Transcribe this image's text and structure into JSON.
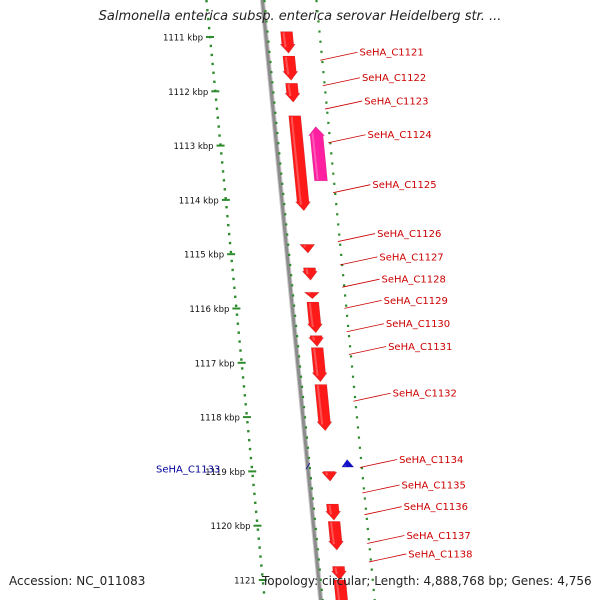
{
  "title": "Salmonella enterica subsp. enterica serovar Heidelberg str. ...",
  "footer": {
    "accession": "Accession: NC_011083",
    "topology": "Topology: circular; Length: 4,888,768 bp; Genes: 4,756"
  },
  "colors": {
    "backbone": "#8c8c8c",
    "gene_forward": "#ff1a1a",
    "gene_highlight": "#ff1fa0",
    "gene_reverse": "#1010cc",
    "scale_dots": "#2e8b2e",
    "label_forward": "#cc0000",
    "label_reverse": "#000099"
  },
  "scale_ticks": [
    {
      "pos": 1111,
      "label": "1111 kbp"
    },
    {
      "pos": 1112,
      "label": "1112 kbp"
    },
    {
      "pos": 1113,
      "label": "1113 kbp"
    },
    {
      "pos": 1114,
      "label": "1114 kbp"
    },
    {
      "pos": 1115,
      "label": "1115 kbp"
    },
    {
      "pos": 1116,
      "label": "1116 kbp"
    },
    {
      "pos": 1117,
      "label": "1117 kbp"
    },
    {
      "pos": 1118,
      "label": "1118 kbp"
    },
    {
      "pos": 1119,
      "label": "1119 kbp"
    },
    {
      "pos": 1120,
      "label": "1120 kbp"
    },
    {
      "pos": 1121,
      "label": "1121"
    }
  ],
  "genes": [
    {
      "label": "SeHA_C1121",
      "strand": "+",
      "start": 1110.9,
      "end": 1111.3,
      "label_pos": 1111.28
    },
    {
      "label": "SeHA_C1122",
      "strand": "+",
      "start": 1111.35,
      "end": 1111.8,
      "label_pos": 1111.75
    },
    {
      "label": "SeHA_C1123",
      "strand": "+",
      "start": 1111.85,
      "end": 1112.2,
      "label_pos": 1112.18
    },
    {
      "label": "SeHA_C1124",
      "strand": "+",
      "start": 1112.65,
      "end": 1113.65,
      "label_pos": 1112.8,
      "highlight": true
    },
    {
      "label": "SeHA_C1125",
      "strand": "+",
      "start": 1112.45,
      "end": 1114.2,
      "label_pos": 1113.72
    },
    {
      "label": "SeHA_C1126",
      "strand": "+",
      "start": 1114.82,
      "end": 1114.98,
      "label_pos": 1114.62
    },
    {
      "label": "SeHA_C1127",
      "strand": "+",
      "start": 1115.25,
      "end": 1115.48,
      "label_pos": 1115.05
    },
    {
      "label": "SeHA_C1128",
      "strand": "+",
      "start": 1115.7,
      "end": 1115.82,
      "label_pos": 1115.46
    },
    {
      "label": "SeHA_C1129",
      "strand": "+",
      "start": 1115.88,
      "end": 1116.45,
      "label_pos": 1115.85
    },
    {
      "label": "SeHA_C1130",
      "strand": "+",
      "start": 1116.5,
      "end": 1116.7,
      "label_pos": 1116.28
    },
    {
      "label": "SeHA_C1131",
      "strand": "+",
      "start": 1116.72,
      "end": 1117.35,
      "label_pos": 1116.7
    },
    {
      "label": "SeHA_C1132",
      "strand": "+",
      "start": 1117.4,
      "end": 1118.25,
      "label_pos": 1117.56
    },
    {
      "label": "SeHA_C1133",
      "strand": "-",
      "start": 1118.78,
      "end": 1118.92,
      "label_pos": 1118.96
    },
    {
      "label": "SeHA_C1134",
      "strand": "+",
      "start": 1119.0,
      "end": 1119.18,
      "label_pos": 1118.78
    },
    {
      "label": "SeHA_C1135",
      "strand": "+",
      "start": 1119.6,
      "end": 1119.9,
      "label_pos": 1119.25
    },
    {
      "label": "SeHA_C1136",
      "strand": "+",
      "start": 1119.92,
      "end": 1120.45,
      "label_pos": 1119.65
    },
    {
      "label": "SeHA_C1137",
      "strand": "+",
      "start": 1120.75,
      "end": 1121.0,
      "label_pos": 1120.18
    },
    {
      "label": "SeHA_C1138",
      "strand": "+",
      "start": 1121.0,
      "end": 1121.6,
      "label_pos": 1120.52
    }
  ]
}
